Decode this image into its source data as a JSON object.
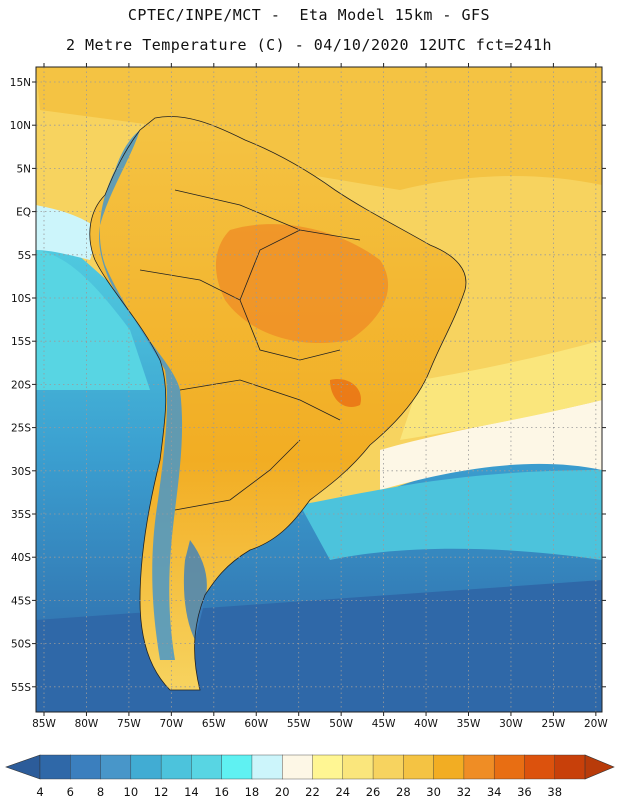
{
  "header": {
    "line1": "CPTEC/INPE/MCT -  Eta Model 15km - GFS",
    "line2": "2 Metre Temperature (C) - 04/10/2020 12UTC fct=241h"
  },
  "map": {
    "region": "South America",
    "variable": "2 Metre Temperature",
    "units": "C",
    "lat_labels": [
      "15N",
      "10N",
      "5N",
      "EQ",
      "5S",
      "10S",
      "15S",
      "20S",
      "25S",
      "30S",
      "35S",
      "40S",
      "45S",
      "50S",
      "55S"
    ],
    "lon_labels": [
      "85W",
      "80W",
      "75W",
      "70W",
      "65W",
      "60W",
      "55W",
      "50W",
      "45W",
      "40W",
      "35W",
      "30W",
      "25W",
      "20W"
    ]
  },
  "legend": {
    "labels": [
      "4",
      "6",
      "8",
      "10",
      "12",
      "14",
      "16",
      "18",
      "20",
      "22",
      "24",
      "26",
      "28",
      "30",
      "32",
      "34",
      "36",
      "38"
    ],
    "colors": [
      "#2f68a8",
      "#3b7fbe",
      "#4896c9",
      "#41acd3",
      "#4cc3dc",
      "#58d5e3",
      "#5ff1f2",
      "#ccf5fb",
      "#fdf7e6",
      "#fff693",
      "#fae67c",
      "#f7d35f",
      "#f4c343",
      "#f2ad23",
      "#ef8d25",
      "#e86e13",
      "#dc520d",
      "#c8400a"
    ],
    "low_arrow_color": "#2c5c9a",
    "high_arrow_color": "#b83b0a"
  }
}
